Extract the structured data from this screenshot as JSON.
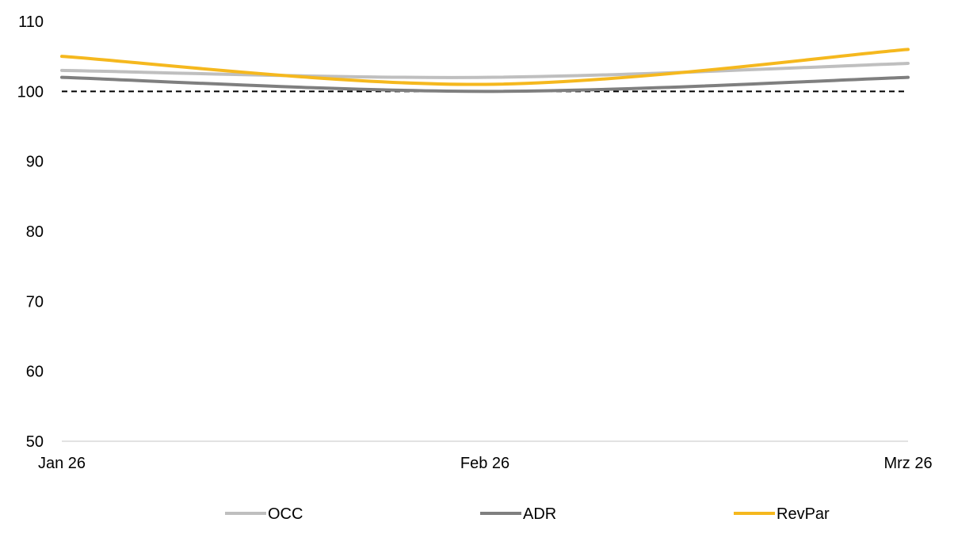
{
  "chart_data": {
    "type": "line",
    "title": "",
    "xlabel": "",
    "ylabel": "",
    "categories": [
      "Jan 26",
      "Feb 26",
      "Mrz 26"
    ],
    "ylim": [
      50,
      110
    ],
    "yticks": [
      50,
      60,
      70,
      80,
      90,
      100,
      110
    ],
    "grid": false,
    "reference_line": {
      "y": 100,
      "style": "dashed",
      "color": "#000000"
    },
    "smooth": true,
    "legend_position": "bottom",
    "series": [
      {
        "name": "OCC",
        "values": [
          103,
          102,
          104
        ],
        "color": "#BFBFBF"
      },
      {
        "name": "ADR",
        "values": [
          102,
          100,
          102
        ],
        "color": "#7F7F7F"
      },
      {
        "name": "RevPar",
        "values": [
          105,
          101,
          106
        ],
        "color": "#F5B81E"
      }
    ]
  }
}
